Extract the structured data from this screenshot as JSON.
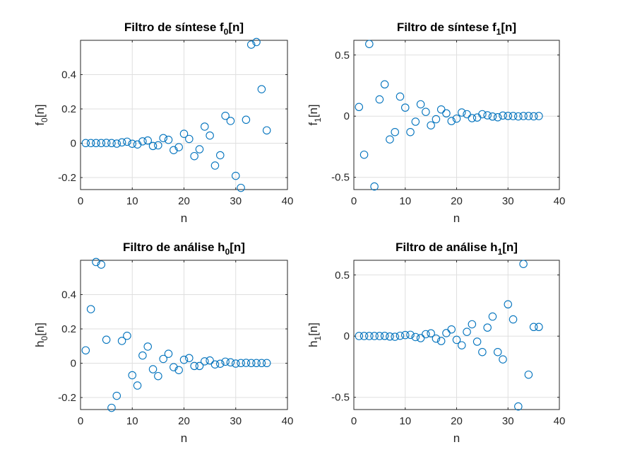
{
  "chart_data": [
    {
      "type": "scatter",
      "title": "Filtro de síntese f",
      "title_sub": "0",
      "title_tail": "[n]",
      "xlabel": "n",
      "ylabel": "f",
      "ylabel_sub": "0",
      "ylabel_tail": "[n]",
      "xlim": [
        0,
        40
      ],
      "ylim": [
        -0.27,
        0.6
      ],
      "xticks": [
        0,
        10,
        20,
        30,
        40
      ],
      "yticks": [
        -0.2,
        0,
        0.2,
        0.4
      ],
      "ytick_labels": [
        "-0.2",
        "0",
        "0.2",
        "0.4"
      ],
      "grid": true,
      "marker": "circle-open",
      "color": "#0072bd",
      "x": [
        1,
        2,
        3,
        4,
        5,
        6,
        7,
        8,
        9,
        10,
        11,
        12,
        13,
        14,
        15,
        16,
        17,
        18,
        19,
        20,
        21,
        22,
        23,
        24,
        25,
        26,
        27,
        28,
        29,
        30,
        31,
        32,
        33,
        34,
        35,
        36
      ],
      "y": [
        0.001,
        0.001,
        0.001,
        0.001,
        0.002,
        0.001,
        -0.002,
        0.005,
        0.009,
        -0.003,
        -0.007,
        0.011,
        0.016,
        -0.016,
        -0.012,
        0.03,
        0.02,
        -0.04,
        -0.023,
        0.055,
        0.025,
        -0.075,
        -0.035,
        0.097,
        0.045,
        -0.13,
        -0.07,
        0.16,
        0.13,
        -0.19,
        -0.26,
        0.137,
        0.575,
        0.59,
        0.315,
        0.075
      ]
    },
    {
      "type": "scatter",
      "title": "Filtro de síntese f",
      "title_sub": "1",
      "title_tail": "[n]",
      "xlabel": "n",
      "ylabel": "f",
      "ylabel_sub": "1",
      "ylabel_tail": "[n]",
      "xlim": [
        0,
        40
      ],
      "ylim": [
        -0.6,
        0.62
      ],
      "xticks": [
        0,
        10,
        20,
        30,
        40
      ],
      "yticks": [
        -0.5,
        0,
        0.5
      ],
      "ytick_labels": [
        "-0.5",
        "0",
        "0.5"
      ],
      "grid": true,
      "marker": "circle-open",
      "color": "#0072bd",
      "x": [
        1,
        2,
        3,
        4,
        5,
        6,
        7,
        8,
        9,
        10,
        11,
        12,
        13,
        14,
        15,
        16,
        17,
        18,
        19,
        20,
        21,
        22,
        23,
        24,
        25,
        26,
        27,
        28,
        29,
        30,
        31,
        32,
        33,
        34,
        35,
        36
      ],
      "y": [
        0.075,
        -0.315,
        0.59,
        -0.575,
        0.137,
        0.26,
        -0.19,
        -0.13,
        0.16,
        0.07,
        -0.13,
        -0.045,
        0.097,
        0.035,
        -0.075,
        -0.025,
        0.055,
        0.023,
        -0.04,
        -0.02,
        0.03,
        0.016,
        -0.016,
        -0.011,
        0.016,
        0.007,
        -0.003,
        -0.009,
        0.005,
        0.002,
        0.001,
        -0.002,
        0.001,
        0.001,
        -0.001,
        0.001
      ]
    },
    {
      "type": "scatter",
      "title": "Filtro de análise h",
      "title_sub": "0",
      "title_tail": "[n]",
      "xlabel": "n",
      "ylabel": "h",
      "ylabel_sub": "0",
      "ylabel_tail": "[n]",
      "xlim": [
        0,
        40
      ],
      "ylim": [
        -0.27,
        0.6
      ],
      "xticks": [
        0,
        10,
        20,
        30,
        40
      ],
      "yticks": [
        -0.2,
        0,
        0.2,
        0.4
      ],
      "ytick_labels": [
        "-0.2",
        "0",
        "0.2",
        "0.4"
      ],
      "grid": true,
      "marker": "circle-open",
      "color": "#0072bd",
      "x": [
        1,
        2,
        3,
        4,
        5,
        6,
        7,
        8,
        9,
        10,
        11,
        12,
        13,
        14,
        15,
        16,
        17,
        18,
        19,
        20,
        21,
        22,
        23,
        24,
        25,
        26,
        27,
        28,
        29,
        30,
        31,
        32,
        33,
        34,
        35,
        36
      ],
      "y": [
        0.075,
        0.315,
        0.59,
        0.575,
        0.137,
        -0.26,
        -0.19,
        0.13,
        0.16,
        -0.07,
        -0.13,
        0.045,
        0.097,
        -0.035,
        -0.075,
        0.025,
        0.055,
        -0.023,
        -0.04,
        0.02,
        0.03,
        -0.016,
        -0.016,
        0.011,
        0.016,
        -0.007,
        -0.003,
        0.009,
        0.005,
        -0.002,
        0.001,
        0.002,
        0.001,
        0.001,
        0.001,
        0.001
      ]
    },
    {
      "type": "scatter",
      "title": "Filtro de análise h",
      "title_sub": "1",
      "title_tail": "[n]",
      "xlabel": "n",
      "ylabel": "h",
      "ylabel_sub": "1",
      "ylabel_tail": "[n]",
      "xlim": [
        0,
        40
      ],
      "ylim": [
        -0.6,
        0.62
      ],
      "xticks": [
        0,
        10,
        20,
        30,
        40
      ],
      "yticks": [
        -0.5,
        0,
        0.5
      ],
      "ytick_labels": [
        "-0.5",
        "0",
        "0.5"
      ],
      "grid": true,
      "marker": "circle-open",
      "color": "#0072bd",
      "x": [
        1,
        2,
        3,
        4,
        5,
        6,
        7,
        8,
        9,
        10,
        11,
        12,
        13,
        14,
        15,
        16,
        17,
        18,
        19,
        20,
        21,
        22,
        23,
        24,
        25,
        26,
        27,
        28,
        29,
        30,
        31,
        32,
        33,
        34,
        35,
        36
      ],
      "y": [
        0.001,
        0.001,
        0.001,
        0.001,
        0.001,
        0.002,
        -0.003,
        -0.005,
        0.003,
        0.009,
        0.011,
        -0.007,
        -0.016,
        0.016,
        0.023,
        -0.02,
        -0.04,
        0.025,
        0.055,
        -0.03,
        -0.075,
        0.035,
        0.097,
        -0.045,
        -0.13,
        0.07,
        0.16,
        -0.13,
        -0.19,
        0.26,
        0.137,
        -0.575,
        0.59,
        -0.315,
        0.075,
        0.075
      ]
    }
  ]
}
